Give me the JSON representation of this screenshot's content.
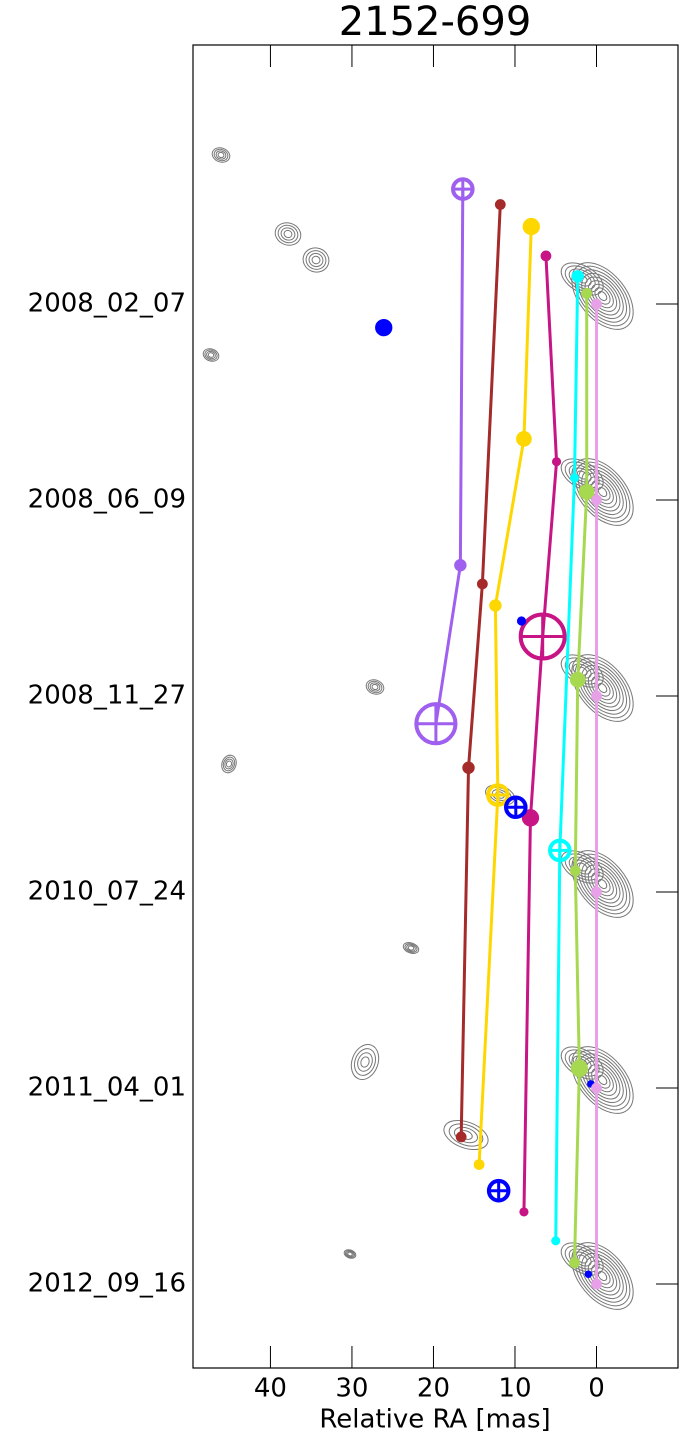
{
  "chart_data": {
    "type": "scatter",
    "title": "2152-699",
    "x_label": "Relative RA [mas]",
    "categories": [
      "2008_02_07",
      "2008_06_09",
      "2008_11_27",
      "2010_07_24",
      "2011_04_01",
      "2012_09_16"
    ],
    "xlim": [
      49.5,
      -10
    ],
    "xticks": [
      40,
      30,
      20,
      10,
      0
    ],
    "series": [
      {
        "color": "#9f5fef",
        "line": true,
        "x": [
          16.4,
          16.7,
          19.7,
          null,
          null,
          null
        ],
        "y": [
          14.1,
          -8.0,
          -3.4,
          null,
          null,
          null
        ],
        "sizes": [
          1.2,
          0.7,
          2.4,
          null,
          null,
          null
        ]
      },
      {
        "color": "#a52a2a",
        "line": true,
        "x": [
          11.8,
          14.0,
          15.7,
          null,
          16.6,
          null
        ],
        "y": [
          12.2,
          -10.3,
          -8.8,
          null,
          -6.0,
          null
        ],
        "sizes": [
          0.6,
          0.6,
          0.7,
          null,
          0.6,
          null
        ]
      },
      {
        "color": "#ffd700",
        "line": true,
        "x": [
          8.0,
          8.9,
          12.4,
          12.1,
          14.4,
          null
        ],
        "y": [
          9.5,
          7.5,
          11.1,
          11.9,
          -9.4,
          null
        ],
        "sizes": [
          1.0,
          0.9,
          0.7,
          1.2,
          0.6,
          null
        ]
      },
      {
        "color": "#c71585",
        "line": true,
        "x": [
          6.2,
          4.9,
          6.6,
          8.1,
          8.9,
          null
        ],
        "y": [
          5.9,
          4.7,
          7.3,
          9.1,
          -15.2,
          null
        ],
        "sizes": [
          0.6,
          0.5,
          2.7,
          1.0,
          0.5,
          null
        ]
      },
      {
        "color": "#0000ff",
        "line": false,
        "x": [
          26.1,
          null,
          9.2,
          9.9,
          12.0,
          null
        ],
        "y": [
          -2.9,
          null,
          9.2,
          10.4,
          -12.6,
          null
        ],
        "sizes": [
          1.0,
          null,
          0.5,
          1.2,
          1.2,
          null
        ]
      },
      {
        "color": "#0000ff",
        "line": false,
        "x": [
          null,
          null,
          null,
          null,
          0.7,
          1.0
        ],
        "y": [
          null,
          null,
          null,
          null,
          0.5,
          1.2
        ],
        "sizes": [
          null,
          null,
          null,
          null,
          0.4,
          0.4
        ]
      },
      {
        "color": "#00ffff",
        "line": true,
        "x": [
          2.3,
          2.7,
          null,
          4.5,
          null,
          5.0
        ],
        "y": [
          3.4,
          2.7,
          null,
          5.1,
          null,
          5.3
        ],
        "sizes": [
          0.7,
          0.5,
          null,
          1.2,
          null,
          0.5
        ]
      },
      {
        "color": "#a6d94f",
        "line": true,
        "x": [
          1.2,
          1.2,
          2.3,
          2.6,
          2.1,
          2.7
        ],
        "y": [
          1.3,
          1.0,
          2.0,
          2.6,
          2.4,
          2.6
        ],
        "sizes": [
          0.6,
          0.9,
          0.9,
          0.6,
          1.0,
          0.6
        ]
      },
      {
        "color": "#e8a0e8",
        "line": true,
        "x": [
          0,
          0,
          0,
          0,
          0,
          0
        ],
        "y": [
          0,
          0,
          0,
          0,
          0,
          0
        ],
        "sizes": [
          0.6,
          0.6,
          0.6,
          0.6,
          0.6,
          0.6
        ]
      }
    ]
  }
}
